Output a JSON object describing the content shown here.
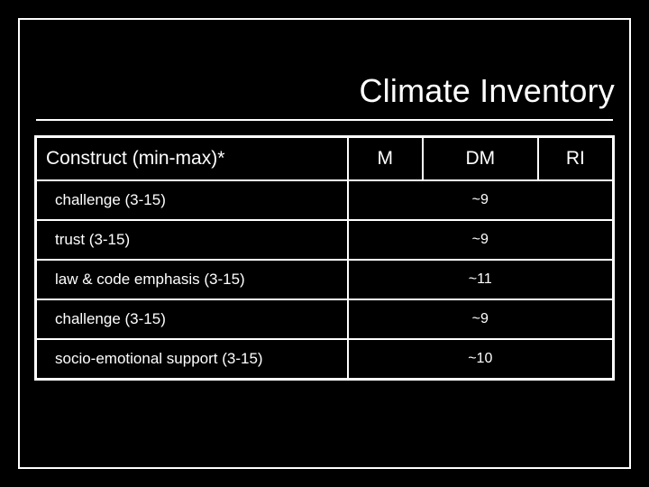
{
  "slide": {
    "title": "Climate Inventory",
    "background_color": "#000000",
    "frame_color": "#ffffff",
    "text_color": "#ffffff",
    "title_fontsize": 36,
    "header_fontsize": 21,
    "row_label_fontsize": 17,
    "value_fontsize": 16
  },
  "table": {
    "type": "table",
    "border_color": "#ffffff",
    "columns": [
      "Construct (min-max)*",
      "M",
      "DM",
      "RI"
    ],
    "column_widths_pct": [
      54,
      13,
      20,
      13
    ],
    "header_alignment": [
      "left",
      "center",
      "center",
      "center"
    ],
    "rows": [
      {
        "label": "challenge (3-15)",
        "merged_value": "~9"
      },
      {
        "label": "trust (3-15)",
        "merged_value": "~9"
      },
      {
        "label": "law & code emphasis (3-15)",
        "merged_value": "~11"
      },
      {
        "label": "challenge (3-15)",
        "merged_value": "~9"
      },
      {
        "label": "socio-emotional support (3-15)",
        "merged_value": "~10"
      }
    ]
  }
}
